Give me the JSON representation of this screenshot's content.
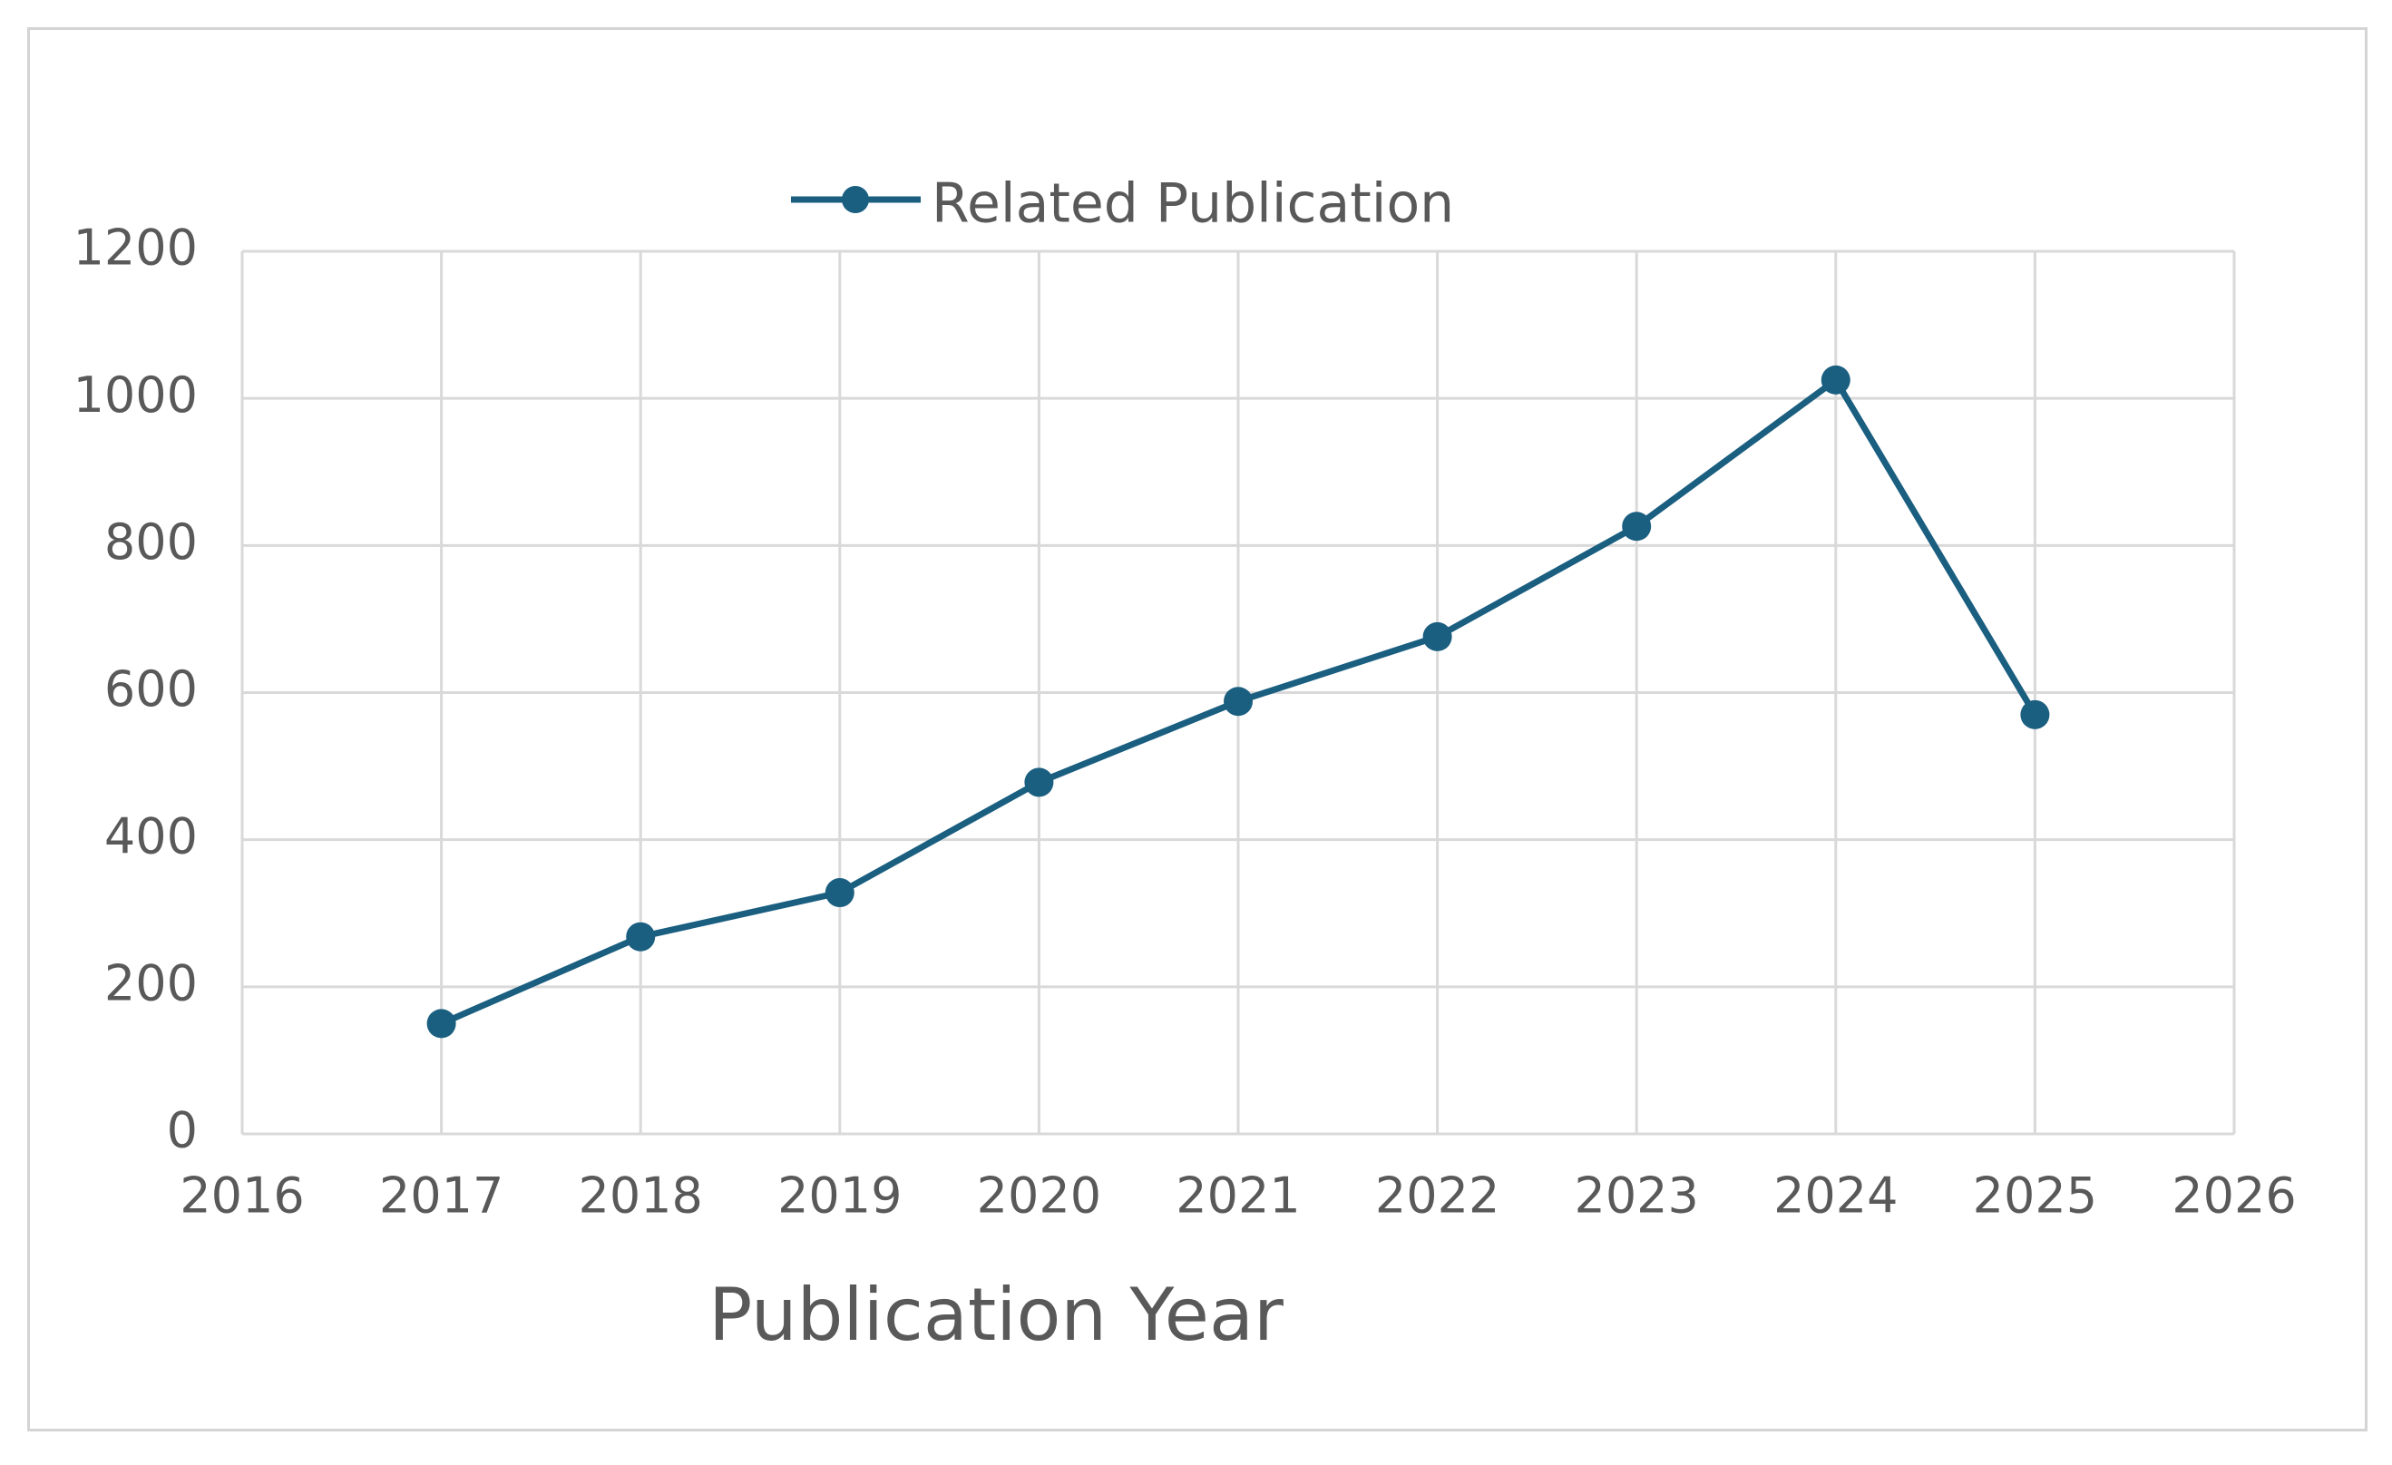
{
  "chart_data": {
    "type": "line",
    "title": "",
    "xlabel": "Publication Year",
    "ylabel": "",
    "x": [
      2017,
      2018,
      2019,
      2020,
      2021,
      2022,
      2023,
      2024,
      2025
    ],
    "series": [
      {
        "name": "Related Publication",
        "values": [
          150,
          268,
          328,
          478,
          588,
          676,
          826,
          1025,
          570
        ]
      }
    ],
    "xlim": [
      2016,
      2026
    ],
    "ylim": [
      0,
      1200
    ],
    "xticks": [
      2016,
      2017,
      2018,
      2019,
      2020,
      2021,
      2022,
      2023,
      2024,
      2025,
      2026
    ],
    "yticks": [
      0,
      200,
      400,
      600,
      800,
      1000,
      1200
    ],
    "grid": true,
    "legend_position": "top-center",
    "series_color": "#1a5e80",
    "grid_color": "#d9d9d9",
    "text_color": "#595959"
  }
}
